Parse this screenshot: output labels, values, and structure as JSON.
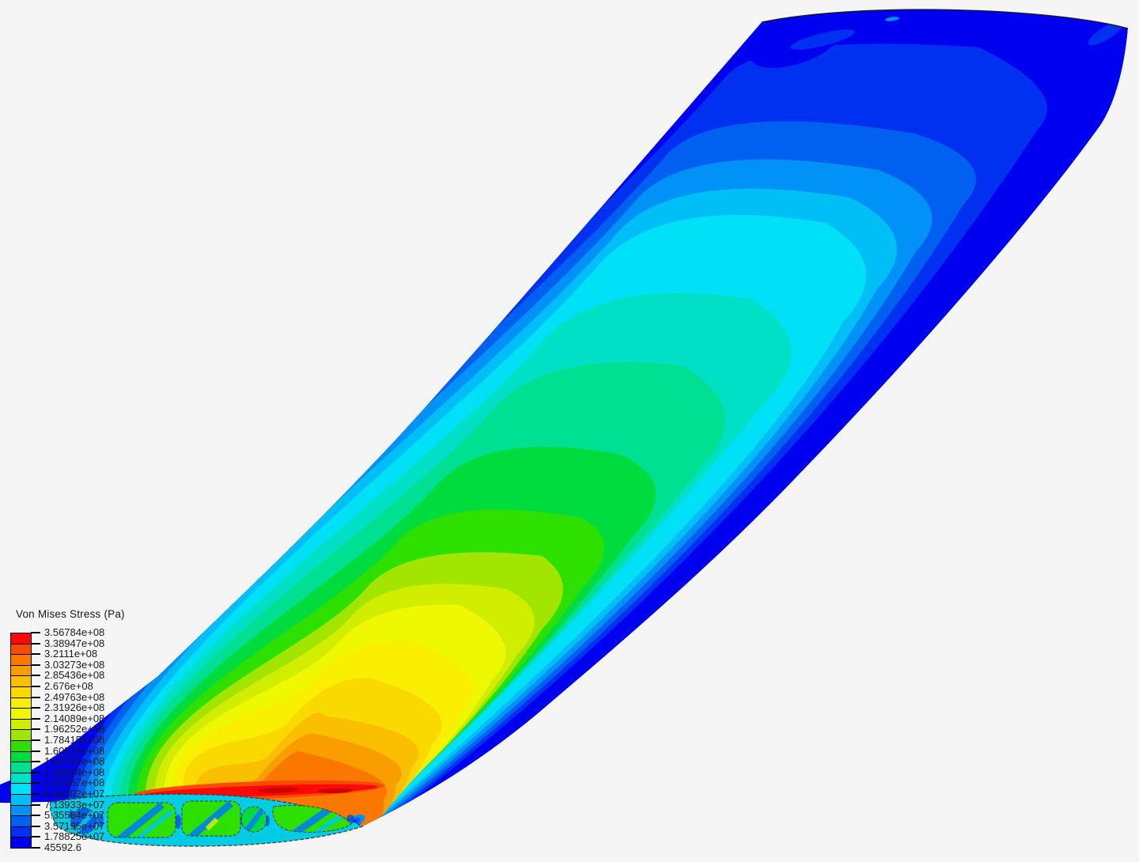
{
  "app": {
    "background_color": "#f5f5f5",
    "view": "FEA post-processing 3D viewport — swept wing, Von Mises stress contour bands, root rib cross-section with lightening holes visible at wing root"
  },
  "legend": {
    "title": "Von Mises Stress (Pa)",
    "tick_labels": [
      "3.56784e+08",
      "3.38947e+08",
      "3.2111e+08",
      "3.03273e+08",
      "2.85436e+08",
      "2.676e+08",
      "2.49763e+08",
      "2.31926e+08",
      "2.14089e+08",
      "1.96252e+08",
      "1.78415e+08",
      "1.60578e+08",
      "1.42741e+08",
      "1.24904e+08",
      "1.07067e+08",
      "8.92302e+07",
      "7.13933e+07",
      "5.35564e+07",
      "3.57195e+07",
      "1.78825e+07",
      "45592.6"
    ],
    "cell_colors_top_to_bottom": [
      "#fb0909",
      "#fa4a00",
      "#fa7800",
      "#fa9e00",
      "#fabf00",
      "#fad900",
      "#faef00",
      "#eef800",
      "#d2ee00",
      "#a2e600",
      "#2ee000",
      "#00dc3e",
      "#00e092",
      "#00e0c6",
      "#00e0f6",
      "#00bef6",
      "#0092f6",
      "#0060f0",
      "#0030f0",
      "#0000f0"
    ],
    "position": "bottom-left"
  },
  "chart_data": {
    "type": "heatmap",
    "title": "Von Mises Stress (Pa)",
    "field": "Von Mises Stress",
    "units": "Pa",
    "colormap": "rainbow (blue = min, red = max), 20 discrete bands",
    "min_value_pa": 45592.6,
    "max_value_pa": 356784000,
    "levels_pa": [
      45592.6,
      17882500,
      35719500,
      53556400,
      71393300,
      89230200,
      107067000,
      124904000,
      142741000,
      160578000,
      178415000,
      196252000,
      214089000,
      231926000,
      249763000,
      267600000,
      285436000,
      303273000,
      321110000,
      338947000,
      356784000
    ],
    "band_colors_low_to_high": [
      "#0000f0",
      "#0030f0",
      "#0060f0",
      "#0092f6",
      "#00bef6",
      "#00e0f6",
      "#00e0c6",
      "#00e092",
      "#00dc3e",
      "#2ee000",
      "#a2e600",
      "#d2ee00",
      "#eef800",
      "#faef00",
      "#fad900",
      "#fabf00",
      "#fa9e00",
      "#fa7800",
      "#fa4a00",
      "#fb0909"
    ],
    "annotations": {
      "max_location": "wing root, mid-chord (red streak just above root rib)",
      "min_location": "wing tip and free edges (dark blue)",
      "geometry": "swept wing seen from root looking toward tip; root airfoil rib with cut-outs at bottom left"
    },
    "legend_position": "bottom-left",
    "grid": false
  }
}
